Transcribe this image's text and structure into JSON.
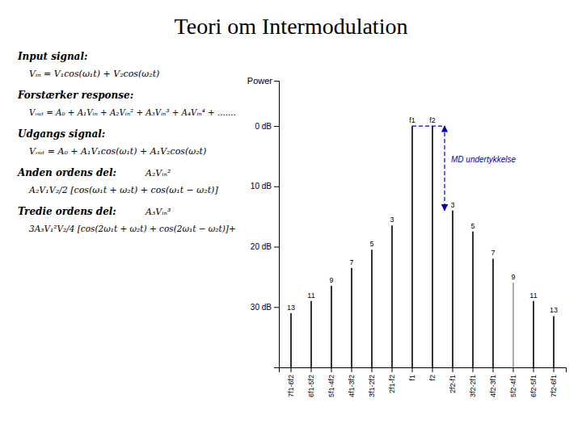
{
  "chart_data": {
    "type": "bar",
    "title": "Teori om Intermodulation",
    "y_label": "Power",
    "categories": [
      "7f1-6f2",
      "6f1-5f2",
      "5f1-4f2",
      "4f1-3f2",
      "3f1-2f2",
      "2f1-f2",
      "f1",
      "f2",
      "2f2-f1",
      "3f2-2f1",
      "4f2-3f1",
      "5f2-4f1",
      "6f2-5f1",
      "7f2-6f1"
    ],
    "values": [
      18,
      22,
      27,
      33,
      39,
      47,
      80,
      80,
      52,
      45,
      36,
      28,
      22,
      17
    ],
    "bar_labels": [
      "13",
      "11",
      "9",
      "7",
      "5",
      "3",
      "f1",
      "f2",
      "3",
      "5",
      "7",
      "9",
      "11",
      "13"
    ],
    "colors": [
      "#333333",
      "#333333",
      "#333333",
      "#333333",
      "#333333",
      "#333333",
      "#333333",
      "#333333",
      "#333333",
      "#333333",
      "#333333",
      "#aaaaaa",
      "#333333",
      "#333333"
    ],
    "ylim": [
      0,
      95
    ],
    "yticks": [
      {
        "value": 80,
        "label": "0 dB"
      },
      {
        "value": 60,
        "label": "10 dB"
      },
      {
        "value": 40,
        "label": "20 dB"
      },
      {
        "value": 20,
        "label": "30 dB"
      }
    ],
    "grid": false,
    "annotation": {
      "text": "MD undertykkelse",
      "color": "#0000bb",
      "y_top": 80,
      "y_bottom": 52,
      "x_from": "f1",
      "x_to": "f2"
    },
    "text_blocks": [
      {
        "heading": "Input signal:",
        "lines": [
          "Vᵢₙ = V₁cos(ω₁t) + V₂cos(ω₂t)"
        ]
      },
      {
        "heading": "Forstærker response:",
        "lines": [
          "Vₒᵤₜ = A₀ + A₁Vᵢₙ + A₂Vᵢₙ² + A₃Vᵢₙ³ + A₄Vᵢₙ⁴ + ......."
        ]
      },
      {
        "heading": "Udgangs signal:",
        "lines": [
          "Vₒᵤₜ = A₀ + A₁V₁cos(ω₁t) + A₁V₂cos(ω₂t)"
        ]
      },
      {
        "heading": "Anden ordens del:",
        "inline": "A₂Vᵢₙ²",
        "lines": [
          "A₂V₁V₂/2 [cos(ω₁t + ω₂t) + cos(ω₁t − ω₂t)]"
        ]
      },
      {
        "heading": "Tredie ordens del:",
        "inline": "A₃Vᵢₙ³",
        "lines": [
          "3A₃V₁²V₂/4 [cos(2ω₁t + ω₂t) + cos(2ω₁t − ω₂t)]+"
        ]
      }
    ]
  }
}
